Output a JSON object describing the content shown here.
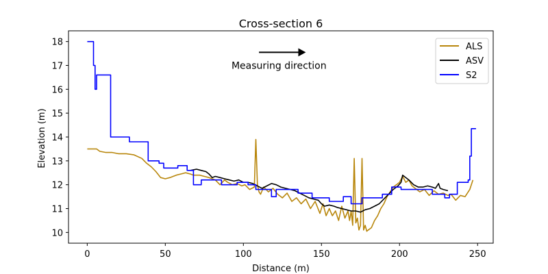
{
  "chart_data": {
    "type": "line",
    "title": "Cross-section 6",
    "xlabel": "Distance (m)",
    "ylabel": "Elevation (m)",
    "xlim": [
      -12,
      260
    ],
    "ylim": [
      9.55,
      18.45
    ],
    "xticks": [
      0,
      50,
      100,
      150,
      200,
      250
    ],
    "yticks": [
      10,
      11,
      12,
      13,
      14,
      15,
      16,
      17,
      18
    ],
    "grid": false,
    "legend_position": "top-right",
    "annotation": {
      "text": "Measuring direction",
      "arrow_from": [
        110,
        17.55
      ],
      "arrow_to": [
        140,
        17.55
      ]
    },
    "series": [
      {
        "name": "ALS",
        "color": "#b8860b",
        "x": [
          0,
          3,
          6,
          8,
          12,
          16,
          20,
          25,
          30,
          35,
          38,
          41,
          44,
          47,
          50,
          53,
          55,
          57,
          60,
          63,
          66,
          68,
          72,
          75,
          78,
          80,
          82,
          85,
          88,
          90,
          93,
          96,
          99,
          101,
          104,
          107,
          108,
          109,
          110,
          111,
          113,
          116,
          119,
          122,
          125,
          128,
          131,
          134,
          137,
          140,
          143,
          146,
          149,
          151,
          153,
          155,
          157,
          159,
          161,
          163,
          165,
          167,
          168,
          169,
          170,
          171,
          172,
          173,
          174,
          175,
          176,
          177,
          178,
          179,
          180,
          182,
          184,
          186,
          188,
          190,
          192,
          194,
          196,
          198,
          200,
          202,
          204,
          206,
          208,
          210,
          213,
          216,
          219,
          222,
          225,
          228,
          231,
          233,
          236,
          239,
          242,
          245,
          247
        ],
        "values": [
          13.5,
          13.5,
          13.5,
          13.4,
          13.35,
          13.35,
          13.3,
          13.3,
          13.25,
          13.1,
          12.9,
          12.75,
          12.55,
          12.3,
          12.25,
          12.3,
          12.35,
          12.4,
          12.45,
          12.5,
          12.45,
          12.4,
          12.4,
          12.35,
          12.3,
          12.25,
          12.2,
          12.0,
          12.2,
          12.1,
          12.0,
          12.05,
          11.95,
          12.0,
          11.8,
          11.9,
          13.9,
          12.0,
          11.7,
          11.6,
          11.9,
          11.7,
          11.85,
          11.6,
          11.45,
          11.65,
          11.3,
          11.45,
          11.2,
          11.4,
          11.0,
          11.3,
          10.8,
          11.2,
          10.7,
          11.0,
          10.7,
          10.9,
          10.5,
          11.1,
          10.6,
          10.9,
          10.5,
          10.9,
          10.3,
          13.1,
          10.4,
          10.6,
          10.1,
          10.3,
          13.1,
          10.1,
          10.3,
          10.05,
          10.1,
          10.2,
          10.5,
          10.7,
          11.0,
          11.2,
          11.5,
          11.7,
          11.9,
          12.0,
          12.1,
          12.35,
          12.1,
          12.2,
          11.95,
          11.85,
          11.7,
          11.8,
          11.55,
          11.75,
          11.6,
          11.65,
          11.55,
          11.6,
          11.35,
          11.55,
          11.5,
          11.8,
          12.2
        ]
      },
      {
        "name": "ASV",
        "color": "#000000",
        "x": [
          66,
          70,
          73,
          76,
          78,
          80,
          82,
          85,
          88,
          91,
          94,
          97,
          100,
          103,
          106,
          109,
          112,
          115,
          118,
          121,
          124,
          127,
          130,
          133,
          136,
          139,
          142,
          145,
          148,
          150,
          152,
          155,
          158,
          160,
          163,
          166,
          169,
          172,
          175,
          178,
          181,
          184,
          187,
          190,
          193,
          196,
          199,
          201,
          202,
          204,
          206,
          209,
          212,
          215,
          218,
          221,
          223,
          225,
          226,
          228,
          231
        ],
        "values": [
          12.6,
          12.65,
          12.6,
          12.55,
          12.45,
          12.3,
          12.35,
          12.3,
          12.25,
          12.2,
          12.15,
          12.2,
          12.1,
          12.1,
          12.05,
          11.95,
          11.85,
          11.95,
          12.05,
          12.0,
          11.9,
          11.85,
          11.8,
          11.75,
          11.65,
          11.55,
          11.45,
          11.4,
          11.35,
          11.2,
          11.1,
          11.15,
          11.1,
          11.05,
          11.0,
          10.95,
          10.9,
          10.9,
          10.85,
          10.95,
          11.0,
          11.1,
          11.2,
          11.4,
          11.6,
          11.8,
          11.95,
          12.1,
          12.4,
          12.3,
          12.2,
          12.0,
          11.9,
          11.9,
          11.95,
          11.9,
          11.85,
          12.05,
          11.85,
          11.8,
          11.75
        ]
      },
      {
        "name": "S2",
        "color": "#0000ff",
        "x": [
          0,
          4,
          4,
          5,
          5,
          6,
          6,
          15,
          15,
          27,
          27,
          39,
          39,
          46,
          46,
          49,
          49,
          58,
          58,
          64,
          64,
          68,
          68,
          73,
          73,
          86,
          86,
          96,
          96,
          103,
          103,
          108,
          108,
          118,
          118,
          121,
          121,
          135,
          135,
          144,
          144,
          155,
          155,
          164,
          164,
          169,
          169,
          176,
          176,
          189,
          189,
          195,
          195,
          201,
          201,
          221,
          221,
          229,
          229,
          232,
          232,
          237,
          237,
          244,
          244,
          245,
          245,
          246,
          246,
          249
        ],
        "values": [
          18.0,
          18.0,
          17.0,
          17.0,
          16.0,
          16.0,
          16.6,
          16.6,
          14.0,
          14.0,
          13.8,
          13.8,
          13.0,
          13.0,
          12.9,
          12.9,
          12.7,
          12.7,
          12.8,
          12.8,
          12.6,
          12.6,
          12.0,
          12.0,
          12.2,
          12.2,
          12.0,
          12.0,
          12.1,
          12.1,
          12.0,
          12.0,
          11.8,
          11.8,
          11.5,
          11.5,
          11.8,
          11.8,
          11.65,
          11.65,
          11.45,
          11.45,
          11.3,
          11.3,
          11.5,
          11.5,
          11.2,
          11.2,
          11.45,
          11.45,
          11.6,
          11.6,
          11.9,
          11.9,
          11.8,
          11.8,
          11.6,
          11.6,
          11.45,
          11.45,
          11.6,
          11.6,
          12.1,
          12.1,
          12.2,
          12.2,
          13.2,
          13.2,
          14.35,
          14.35
        ]
      }
    ]
  }
}
